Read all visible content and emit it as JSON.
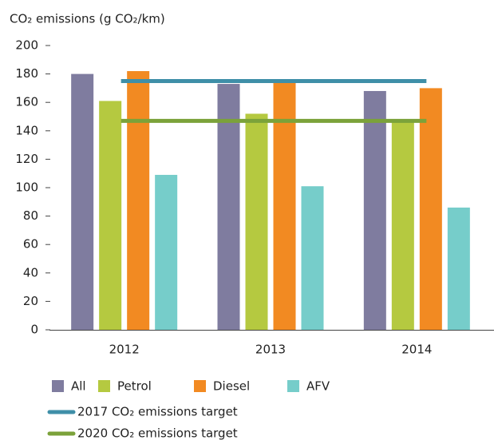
{
  "chart_data": {
    "type": "bar",
    "title": "CO₂ emissions (g CO₂/km)",
    "categories": [
      "2012",
      "2013",
      "2014"
    ],
    "series": [
      {
        "name": "All",
        "color": "#7f7c9f",
        "values": [
          180,
          173,
          168
        ]
      },
      {
        "name": "Petrol",
        "color": "#b5c940",
        "values": [
          161,
          152,
          148
        ]
      },
      {
        "name": "Diesel",
        "color": "#f28a22",
        "values": [
          182,
          176,
          170
        ]
      },
      {
        "name": "AFV",
        "color": "#76cdca",
        "values": [
          109,
          101,
          86
        ]
      }
    ],
    "targets": [
      {
        "name": "2017 CO₂ emissions target",
        "color": "#3f8fa8",
        "value": 175
      },
      {
        "name": "2020 CO₂ emissions target",
        "color": "#7ba23a",
        "value": 147
      }
    ],
    "ylim": [
      0,
      200
    ],
    "yticks": [
      0,
      20,
      40,
      60,
      80,
      100,
      120,
      140,
      160,
      180,
      200
    ],
    "grid": false
  }
}
